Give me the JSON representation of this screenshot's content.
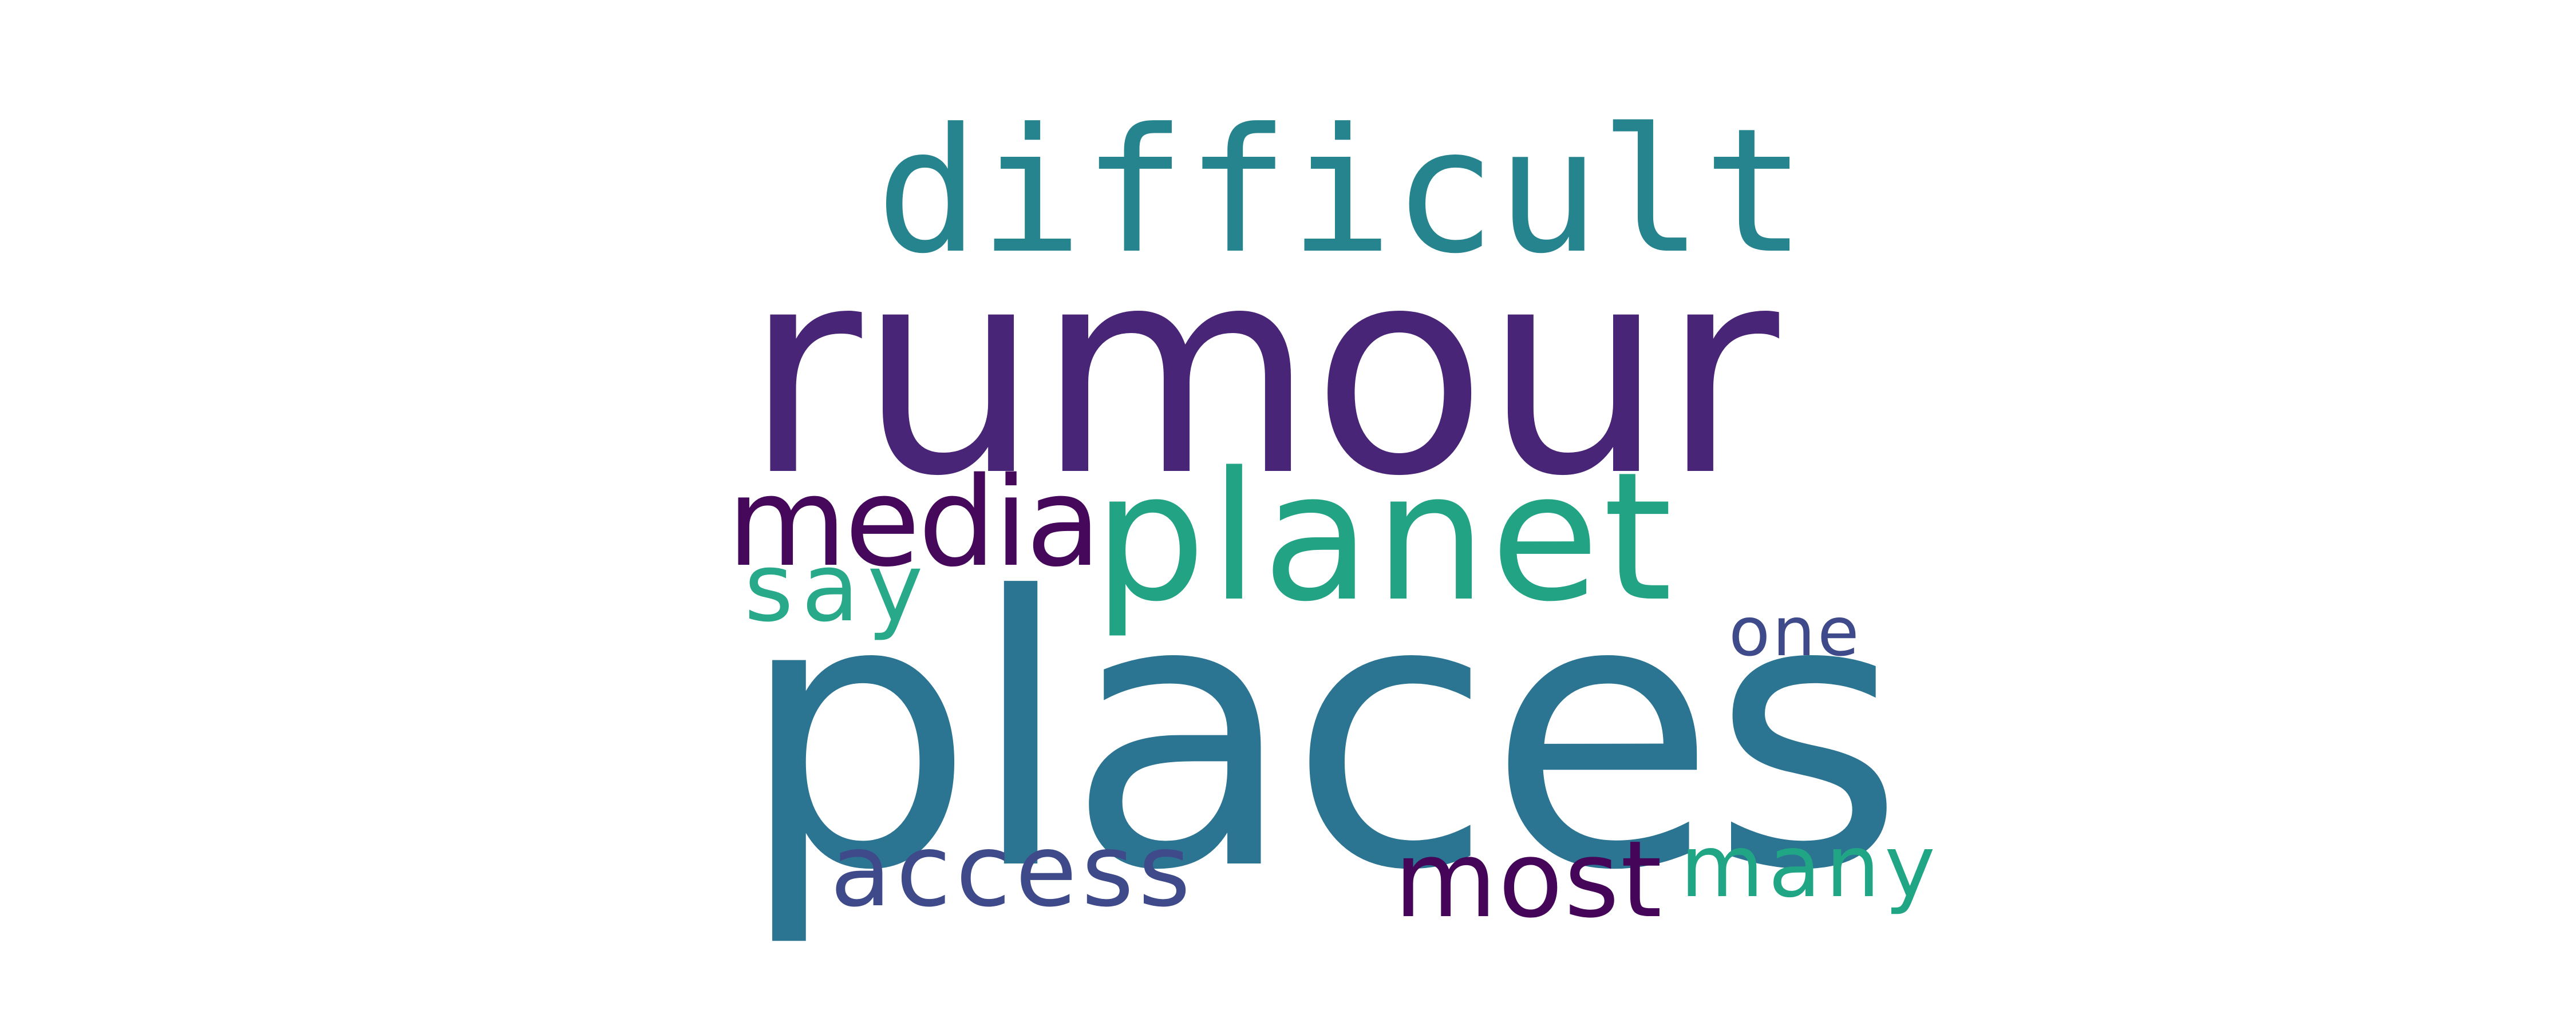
{
  "words": [
    {
      "text": "rumour",
      "color": "#482576"
    },
    {
      "text": "places",
      "color": "#2c7592"
    },
    {
      "text": "difficult",
      "color": "#26848e"
    },
    {
      "text": "planet",
      "color": "#22a384"
    },
    {
      "text": "media",
      "color": "#45085b"
    },
    {
      "text": "say",
      "color": "#27a98a"
    },
    {
      "text": "one",
      "color": "#3e4a89"
    },
    {
      "text": "access",
      "color": "#3f4a8a"
    },
    {
      "text": "most",
      "color": "#450559"
    },
    {
      "text": "many",
      "color": "#21a685"
    }
  ]
}
